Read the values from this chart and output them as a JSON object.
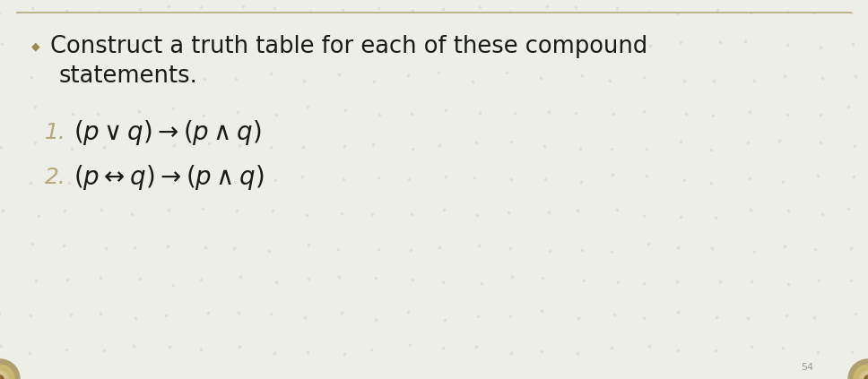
{
  "background_color": "#eeeee8",
  "top_line_color": "#b5a97a",
  "bullet_color": "#9a8a50",
  "title_line1": "Construct a truth table for each of these compound",
  "title_line2": "statements.",
  "title_color": "#1a1a1a",
  "title_fontsize": 18.5,
  "number_color": "#b5a97a",
  "number_fontsize": 18,
  "formula_color": "#1a1a1a",
  "formula_fontsize": 20,
  "formula1": "$(p \\vee q) \\rightarrow (p \\wedge q)$",
  "formula2": "$(p \\leftrightarrow q) \\rightarrow (p \\wedge q)$",
  "page_number": "54",
  "page_number_color": "#999999",
  "page_number_fontsize": 8,
  "bullet_char": "◆",
  "dot_pattern_color": "#d8d4c8",
  "circle_outer_color": "#b0a070",
  "circle_inner_color": "#d4c490",
  "circle_core_color": "#8a6830"
}
